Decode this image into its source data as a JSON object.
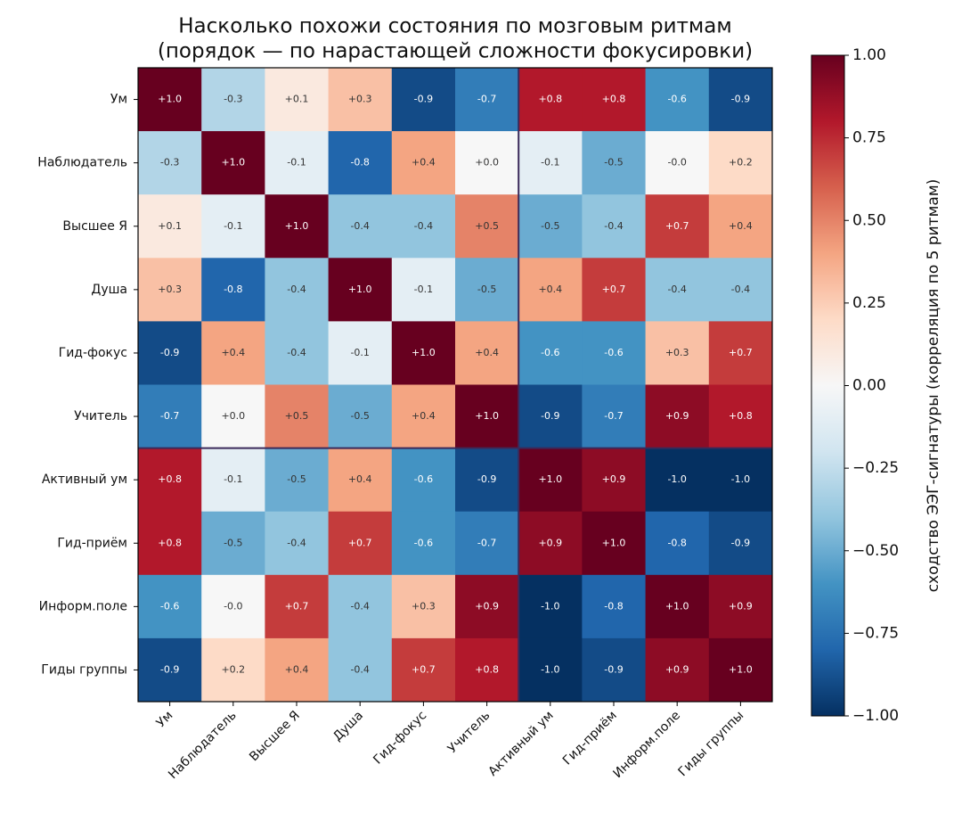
{
  "chart_data": {
    "type": "heatmap",
    "title": [
      "Насколько похожи состояния по мозговым ритмам",
      "(порядок — по нарастающей сложности фокусировки)"
    ],
    "categories": [
      "Ум",
      "Наблюдатель",
      "Высшее Я",
      "Душа",
      "Гид-фокус",
      "Учитель",
      "Активный ум",
      "Гид-приём",
      "Информ.поле",
      "Гиды группы"
    ],
    "values": [
      [
        1.0,
        -0.3,
        0.1,
        0.3,
        -0.9,
        -0.7,
        0.8,
        0.8,
        -0.6,
        -0.9
      ],
      [
        -0.3,
        1.0,
        -0.1,
        -0.8,
        0.4,
        0.0,
        -0.1,
        -0.5,
        0.0,
        0.2
      ],
      [
        0.1,
        -0.1,
        1.0,
        -0.4,
        -0.4,
        0.5,
        -0.5,
        -0.4,
        0.7,
        0.4
      ],
      [
        0.3,
        -0.8,
        -0.4,
        1.0,
        -0.1,
        -0.5,
        0.4,
        0.7,
        -0.4,
        -0.4
      ],
      [
        -0.9,
        0.4,
        -0.4,
        -0.1,
        1.0,
        0.4,
        -0.6,
        -0.6,
        0.3,
        0.7
      ],
      [
        -0.7,
        0.0,
        0.5,
        -0.5,
        0.4,
        1.0,
        -0.9,
        -0.7,
        0.9,
        0.8
      ],
      [
        0.8,
        -0.1,
        -0.5,
        0.4,
        -0.6,
        -0.9,
        1.0,
        0.9,
        -1.0,
        -1.0
      ],
      [
        0.8,
        -0.5,
        -0.4,
        0.7,
        -0.6,
        -0.7,
        0.9,
        1.0,
        -0.8,
        -0.9
      ],
      [
        -0.6,
        0.0,
        0.7,
        -0.4,
        0.3,
        0.9,
        -1.0,
        -0.8,
        1.0,
        0.9
      ],
      [
        -0.9,
        0.2,
        0.4,
        -0.4,
        0.7,
        0.8,
        -1.0,
        -0.9,
        0.9,
        1.0
      ]
    ],
    "value_labels": [
      [
        "+1.0",
        "-0.3",
        "+0.1",
        "+0.3",
        "-0.9",
        "-0.7",
        "+0.8",
        "+0.8",
        "-0.6",
        "-0.9"
      ],
      [
        "-0.3",
        "+1.0",
        "-0.1",
        "-0.8",
        "+0.4",
        "+0.0",
        "-0.1",
        "-0.5",
        "-0.0",
        "+0.2"
      ],
      [
        "+0.1",
        "-0.1",
        "+1.0",
        "-0.4",
        "-0.4",
        "+0.5",
        "-0.5",
        "-0.4",
        "+0.7",
        "+0.4"
      ],
      [
        "+0.3",
        "-0.8",
        "-0.4",
        "+1.0",
        "-0.1",
        "-0.5",
        "+0.4",
        "+0.7",
        "-0.4",
        "-0.4"
      ],
      [
        "-0.9",
        "+0.4",
        "-0.4",
        "-0.1",
        "+1.0",
        "+0.4",
        "-0.6",
        "-0.6",
        "+0.3",
        "+0.7"
      ],
      [
        "-0.7",
        "+0.0",
        "+0.5",
        "-0.5",
        "+0.4",
        "+1.0",
        "-0.9",
        "-0.7",
        "+0.9",
        "+0.8"
      ],
      [
        "+0.8",
        "-0.1",
        "-0.5",
        "+0.4",
        "-0.6",
        "-0.9",
        "+1.0",
        "+0.9",
        "-1.0",
        "-1.0"
      ],
      [
        "+0.8",
        "-0.5",
        "-0.4",
        "+0.7",
        "-0.6",
        "-0.7",
        "+0.9",
        "+1.0",
        "-0.8",
        "-0.9"
      ],
      [
        "-0.6",
        "-0.0",
        "+0.7",
        "-0.4",
        "+0.3",
        "+0.9",
        "-1.0",
        "-0.8",
        "+1.0",
        "+0.9"
      ],
      [
        "-0.9",
        "+0.2",
        "+0.4",
        "-0.4",
        "+0.7",
        "+0.8",
        "-1.0",
        "-0.9",
        "+0.9",
        "+1.0"
      ]
    ],
    "colormap": "RdBu_r",
    "clim": [
      -1,
      1
    ],
    "cticks": [
      {
        "value": 1,
        "label": "1.00"
      },
      {
        "value": 0.75,
        "label": "0.75"
      },
      {
        "value": 0.5,
        "label": "0.50"
      },
      {
        "value": 0.25,
        "label": "0.25"
      },
      {
        "value": 0,
        "label": "0.00"
      },
      {
        "value": -0.25,
        "label": "−0.25"
      },
      {
        "value": -0.5,
        "label": "−0.50"
      },
      {
        "value": -0.75,
        "label": "−0.75"
      },
      {
        "value": -1,
        "label": "−1.00"
      }
    ],
    "colorbar_label": "сходство ЭЭГ-сигнатуры (корреляция по 5 ритмам)",
    "separators": [
      6
    ]
  }
}
